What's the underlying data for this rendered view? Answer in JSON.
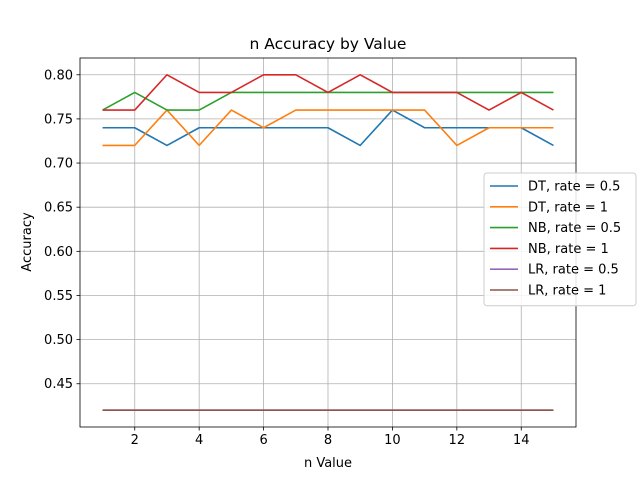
{
  "chart_data": {
    "type": "line",
    "title": "n Accuracy by Value",
    "xlabel": "n Value",
    "ylabel": "Accuracy",
    "x": [
      1,
      2,
      3,
      4,
      5,
      6,
      7,
      8,
      9,
      10,
      11,
      12,
      13,
      14,
      15
    ],
    "xlim": [
      0.3,
      15.7
    ],
    "ylim": [
      0.401,
      0.819
    ],
    "xticks": [
      2,
      4,
      6,
      8,
      10,
      12,
      14
    ],
    "yticks": [
      0.45,
      0.5,
      0.55,
      0.6,
      0.65,
      0.7,
      0.75,
      0.8
    ],
    "grid": true,
    "legend_position": "right",
    "series": [
      {
        "name": "DT, rate = 0.5",
        "color": "#1f77b4",
        "values": [
          0.74,
          0.74,
          0.72,
          0.74,
          0.74,
          0.74,
          0.74,
          0.74,
          0.72,
          0.76,
          0.74,
          0.74,
          0.74,
          0.74,
          0.72
        ]
      },
      {
        "name": "DT, rate = 1",
        "color": "#ff7f0e",
        "values": [
          0.72,
          0.72,
          0.76,
          0.72,
          0.76,
          0.74,
          0.76,
          0.76,
          0.76,
          0.76,
          0.76,
          0.72,
          0.74,
          0.74,
          0.74
        ]
      },
      {
        "name": "NB, rate = 0.5",
        "color": "#2ca02c",
        "values": [
          0.76,
          0.78,
          0.76,
          0.76,
          0.78,
          0.78,
          0.78,
          0.78,
          0.78,
          0.78,
          0.78,
          0.78,
          0.78,
          0.78,
          0.78
        ]
      },
      {
        "name": "NB, rate = 1",
        "color": "#d62728",
        "values": [
          0.76,
          0.76,
          0.8,
          0.78,
          0.78,
          0.8,
          0.8,
          0.78,
          0.8,
          0.78,
          0.78,
          0.78,
          0.76,
          0.78,
          0.76
        ]
      },
      {
        "name": "LR, rate = 0.5",
        "color": "#9467bd",
        "values": [
          0.42,
          0.42,
          0.42,
          0.42,
          0.42,
          0.42,
          0.42,
          0.42,
          0.42,
          0.42,
          0.42,
          0.42,
          0.42,
          0.42,
          0.42
        ]
      },
      {
        "name": "LR, rate = 1",
        "color": "#8c564b",
        "values": [
          0.42,
          0.42,
          0.42,
          0.42,
          0.42,
          0.42,
          0.42,
          0.42,
          0.42,
          0.42,
          0.42,
          0.42,
          0.42,
          0.42,
          0.42
        ]
      }
    ]
  }
}
